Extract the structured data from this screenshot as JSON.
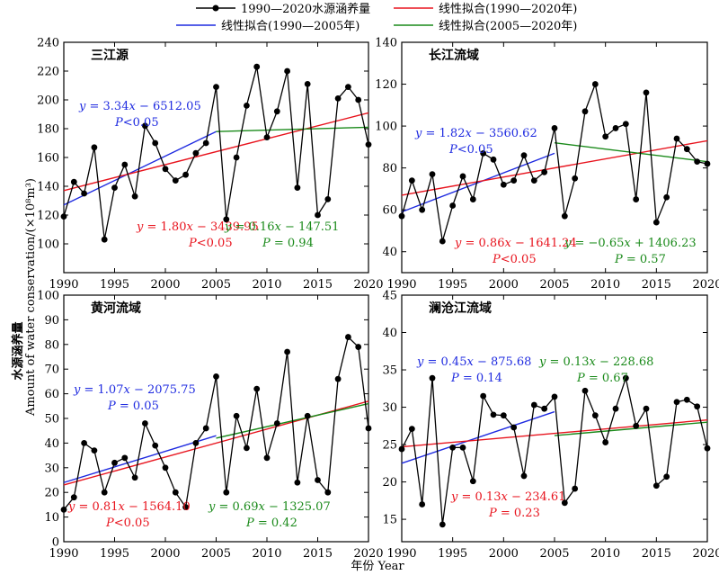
{
  "legend": {
    "data_series": "1990—2020水源涵养量",
    "fit_1990_2020": "线性拟合(1990—2020年)",
    "fit_1990_2005": "线性拟合(1990—2005年)",
    "fit_2005_2020": "线性拟合(2005—2020年)"
  },
  "axes": {
    "ylabel_cn": "水源涵养量",
    "ylabel_en": "Amount of water conservation/(×10⁸m³)",
    "xlabel": "年份 Year"
  },
  "colors": {
    "data": "#000000",
    "fit_1990_2020": "#e8141e",
    "fit_1990_2005": "#1f2be0",
    "fit_2005_2020": "#1a8a1a"
  },
  "chart_data": [
    {
      "type": "line",
      "title": "三江源",
      "x": [
        1990,
        1991,
        1992,
        1993,
        1994,
        1995,
        1996,
        1997,
        1998,
        1999,
        2000,
        2001,
        2002,
        2003,
        2004,
        2005,
        2006,
        2007,
        2008,
        2009,
        2010,
        2011,
        2012,
        2013,
        2014,
        2015,
        2016,
        2017,
        2018,
        2019,
        2020
      ],
      "values": [
        119,
        143,
        135,
        167,
        103,
        139,
        155,
        133,
        182,
        170,
        152,
        144,
        148,
        163,
        170,
        209,
        117,
        160,
        196,
        223,
        174,
        192,
        220,
        139,
        211,
        120,
        131,
        201,
        209,
        200,
        169
      ],
      "xlim": [
        1990,
        2020
      ],
      "ylim": [
        80,
        240
      ],
      "xticks": [
        1990,
        1995,
        2000,
        2005,
        2010,
        2015,
        2020
      ],
      "yticks": [
        100,
        120,
        140,
        160,
        180,
        200,
        220,
        240
      ],
      "fits": [
        {
          "name": "fit_1990_2005",
          "x": [
            1990,
            2005
          ],
          "y": [
            127,
            178
          ],
          "label": "y = 3.34x −  6512.05",
          "sig": "P<0.05"
        },
        {
          "name": "fit_1990_2020",
          "x": [
            1990,
            2020
          ],
          "y": [
            137,
            191
          ],
          "label": "y = 1.80x − 3439.95",
          "sig": "P<0.05"
        },
        {
          "name": "fit_2005_2020",
          "x": [
            2005,
            2020
          ],
          "y": [
            178,
            181
          ],
          "label": "y = 0.16x − 147.51",
          "sig": "P = 0.94"
        }
      ]
    },
    {
      "type": "line",
      "title": "长江流域",
      "x": [
        1990,
        1991,
        1992,
        1993,
        1994,
        1995,
        1996,
        1997,
        1998,
        1999,
        2000,
        2001,
        2002,
        2003,
        2004,
        2005,
        2006,
        2007,
        2008,
        2009,
        2010,
        2011,
        2012,
        2013,
        2014,
        2015,
        2016,
        2017,
        2018,
        2019,
        2020
      ],
      "values": [
        57,
        74,
        60,
        77,
        45,
        62,
        76,
        65,
        87,
        84,
        72,
        74,
        86,
        74,
        78,
        99,
        57,
        75,
        107,
        120,
        95,
        99,
        101,
        65,
        116,
        54,
        66,
        94,
        89,
        83,
        82
      ],
      "xlim": [
        1990,
        2020
      ],
      "ylim": [
        30,
        140
      ],
      "xticks": [
        1990,
        1995,
        2000,
        2005,
        2010,
        2015,
        2020
      ],
      "yticks": [
        40,
        60,
        80,
        100,
        120,
        140
      ],
      "fits": [
        {
          "name": "fit_1990_2005",
          "x": [
            1990,
            2005
          ],
          "y": [
            59,
            87
          ],
          "label": "y = 1.82x − 3560.62",
          "sig": "P<0.05"
        },
        {
          "name": "fit_1990_2020",
          "x": [
            1990,
            2020
          ],
          "y": [
            67,
            93
          ],
          "label": "y = 0.86x − 1641.24",
          "sig": "P<0.05"
        },
        {
          "name": "fit_2005_2020",
          "x": [
            2005,
            2020
          ],
          "y": [
            92,
            83
          ],
          "label": "y = −0.65x + 1406.23",
          "sig": "P = 0.57"
        }
      ]
    },
    {
      "type": "line",
      "title": "黄河流域",
      "x": [
        1990,
        1991,
        1992,
        1993,
        1994,
        1995,
        1996,
        1997,
        1998,
        1999,
        2000,
        2001,
        2002,
        2003,
        2004,
        2005,
        2006,
        2007,
        2008,
        2009,
        2010,
        2011,
        2012,
        2013,
        2014,
        2015,
        2016,
        2017,
        2018,
        2019,
        2020
      ],
      "values": [
        13,
        18,
        40,
        37,
        20,
        32,
        34,
        26,
        48,
        39,
        30,
        20,
        14,
        40,
        46,
        67,
        20,
        51,
        38,
        62,
        34,
        48,
        77,
        24,
        51,
        25,
        20,
        66,
        83,
        79,
        46
      ],
      "xlim": [
        1990,
        2020
      ],
      "ylim": [
        0,
        100
      ],
      "xticks": [
        1990,
        1995,
        2000,
        2005,
        2010,
        2015,
        2020
      ],
      "yticks": [
        0,
        10,
        20,
        30,
        40,
        50,
        60,
        70,
        80,
        90,
        100
      ],
      "fits": [
        {
          "name": "fit_1990_2005",
          "x": [
            1990,
            2005
          ],
          "y": [
            24,
            43
          ],
          "label": "y = 1.07x − 2075.75",
          "sig": "P = 0.05"
        },
        {
          "name": "fit_1990_2020",
          "x": [
            1990,
            2020
          ],
          "y": [
            23,
            57
          ],
          "label": "y = 0.81x − 1564.10",
          "sig": "P<0.05"
        },
        {
          "name": "fit_2005_2020",
          "x": [
            2005,
            2020
          ],
          "y": [
            42,
            56
          ],
          "label": "y = 0.69x − 1325.07",
          "sig": "P = 0.42"
        }
      ]
    },
    {
      "type": "line",
      "title": "澜沧江流域",
      "x": [
        1990,
        1991,
        1992,
        1993,
        1994,
        1995,
        1996,
        1997,
        1998,
        1999,
        2000,
        2001,
        2002,
        2003,
        2004,
        2005,
        2006,
        2007,
        2008,
        2009,
        2010,
        2011,
        2012,
        2013,
        2014,
        2015,
        2016,
        2017,
        2018,
        2019,
        2020
      ],
      "values": [
        24.4,
        27.1,
        17.0,
        33.9,
        14.3,
        24.6,
        24.6,
        20.1,
        31.5,
        29.0,
        28.9,
        27.3,
        20.8,
        30.3,
        29.8,
        31.4,
        17.2,
        19.1,
        32.2,
        28.9,
        25.3,
        29.8,
        33.9,
        27.5,
        29.8,
        19.5,
        20.7,
        30.7,
        31.0,
        30.1,
        24.5
      ],
      "xlim": [
        1990,
        2020
      ],
      "ylim": [
        12,
        45
      ],
      "xticks": [
        1990,
        1995,
        2000,
        2005,
        2010,
        2015,
        2020
      ],
      "yticks": [
        15,
        20,
        25,
        30,
        35,
        40,
        45
      ],
      "fits": [
        {
          "name": "fit_1990_2005",
          "x": [
            1990,
            2005
          ],
          "y": [
            22.5,
            29.4
          ],
          "label": "y = 0.45x − 875.68",
          "sig": "P = 0.14"
        },
        {
          "name": "fit_1990_2020",
          "x": [
            1990,
            2020
          ],
          "y": [
            24.7,
            28.3
          ],
          "label": "y = 0.13x − 234.61",
          "sig": "P = 0.23"
        },
        {
          "name": "fit_2005_2020",
          "x": [
            2005,
            2020
          ],
          "y": [
            26.2,
            28.0
          ],
          "label": "y = 0.13x − 228.68",
          "sig": "P = 0.67"
        }
      ]
    }
  ]
}
